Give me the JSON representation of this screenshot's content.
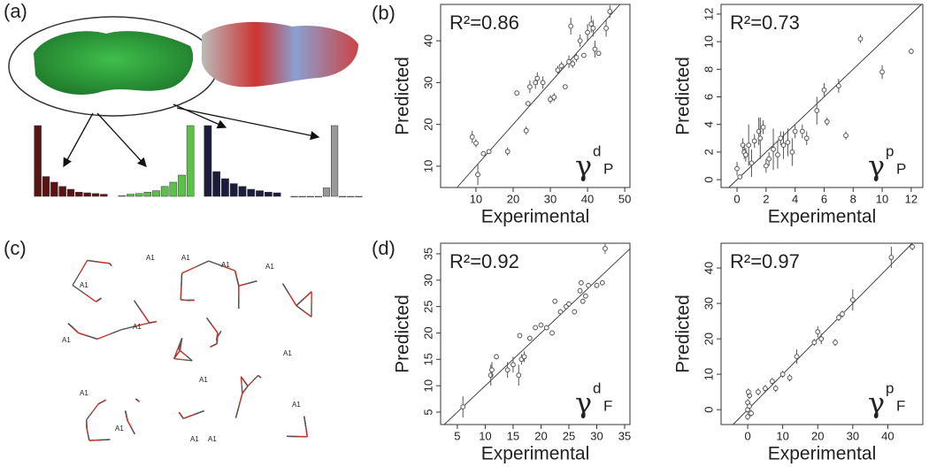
{
  "panel_labels": [
    "(a)",
    "(b)",
    "(c)",
    "(d)"
  ],
  "molecule_atom_labels": [
    "A1",
    "A1",
    "A1",
    "A1",
    "A1",
    "A1",
    "A1",
    "A1",
    "A1",
    "A1",
    "A1",
    "A1",
    "A1",
    "A1"
  ],
  "chart_data": [
    {
      "type": "bar",
      "values": [
        100,
        28,
        20,
        14,
        10,
        6,
        5,
        4,
        3
      ],
      "color": "#5a1414",
      "ylim": [
        0,
        100
      ]
    },
    {
      "type": "bar",
      "values": [
        1,
        3,
        4,
        6,
        8,
        14,
        20,
        30,
        100
      ],
      "color": "#5dc04a",
      "ylim": [
        0,
        100
      ]
    },
    {
      "type": "bar",
      "values": [
        100,
        35,
        25,
        18,
        14,
        10,
        8,
        6,
        5
      ],
      "color": "#1c1c3c",
      "ylim": [
        0,
        100
      ]
    },
    {
      "type": "bar",
      "values": [
        0,
        0,
        0,
        0,
        12,
        100,
        0,
        0,
        0
      ],
      "color": "#999999",
      "ylim": [
        0,
        100
      ]
    },
    {
      "type": "scatter",
      "x_label": "Experimental",
      "y_label": "Predicted",
      "annotation": "R²=0.86",
      "symbol": {
        "letter": "γ",
        "superscript": "d",
        "subscript": "P"
      },
      "color": "#555555",
      "x": [
        9,
        10,
        10.5,
        12,
        13.5,
        18.5,
        21,
        23.5,
        24,
        24.5,
        26,
        26.5,
        28,
        30,
        31,
        32,
        33,
        34,
        35,
        35.5,
        36,
        37,
        38,
        39,
        40,
        41,
        41.5,
        42,
        43,
        45,
        46
      ],
      "y": [
        17,
        15.5,
        8,
        13,
        13.5,
        13.5,
        27.5,
        18.5,
        25,
        29,
        30,
        31,
        30,
        26,
        26.5,
        33,
        34,
        29,
        35,
        43.5,
        34.5,
        36,
        40,
        36.5,
        42,
        44,
        43,
        38,
        37,
        43,
        47
      ],
      "errors": [
        1.5,
        1,
        2.5,
        0,
        0.5,
        1,
        0.5,
        1,
        0.5,
        1.5,
        1.5,
        1.5,
        1.5,
        1,
        1,
        1,
        1,
        0.5,
        1.5,
        2,
        1,
        1,
        1.5,
        0.5,
        2,
        2,
        2,
        2,
        0.5,
        2,
        1.5
      ],
      "xlim": [
        0.5,
        51.4
      ],
      "ylim": [
        4.9,
        48.7
      ],
      "xticks": [
        10,
        20,
        30,
        40,
        50
      ],
      "yticks": [
        10,
        20,
        30,
        40
      ]
    },
    {
      "type": "scatter",
      "x_label": "Experimental",
      "y_label": "Predicted",
      "annotation": "R²=0.73",
      "symbol": {
        "letter": "γ",
        "superscript": "p",
        "subscript": "P"
      },
      "color": "#555555",
      "x": [
        0,
        0.2,
        0.4,
        0.5,
        0.6,
        0.8,
        1,
        1.2,
        1.5,
        1.6,
        1.8,
        2,
        2.2,
        2.5,
        2.8,
        3,
        3.2,
        3.5,
        3.8,
        4,
        4.5,
        4.8,
        5.5,
        6,
        6.2,
        7,
        7.5,
        8.5,
        10,
        12
      ],
      "y": [
        0.8,
        0.2,
        2.5,
        2,
        1.8,
        2.5,
        1.2,
        2.8,
        3.5,
        3,
        3.8,
        1,
        1.5,
        2.2,
        1.8,
        3,
        2.5,
        2.7,
        2,
        3.5,
        3.5,
        3,
        5,
        6.5,
        4.2,
        6.8,
        3.2,
        10.2,
        7.8,
        9.3
      ],
      "errors": [
        0.5,
        0,
        0.5,
        0.5,
        0.5,
        1.5,
        1,
        0.5,
        1,
        1.5,
        0.5,
        0.5,
        0.5,
        1.5,
        1,
        0.5,
        1,
        1,
        1,
        0.5,
        0.5,
        0.5,
        1,
        0.5,
        0.3,
        0.5,
        0.3,
        0.3,
        0.5,
        0.2
      ],
      "xlim": [
        -1.1,
        12.8
      ],
      "ylim": [
        -0.57,
        12.7
      ],
      "xticks": [
        0,
        2,
        4,
        6,
        8,
        10,
        12
      ],
      "yticks": [
        0,
        2,
        4,
        6,
        8,
        10,
        12
      ]
    },
    {
      "type": "scatter",
      "x_label": "Experimental",
      "y_label": "Predicted",
      "annotation": "R²=0.92",
      "symbol": {
        "letter": "γ",
        "superscript": "d",
        "subscript": "F"
      },
      "color": "#555555",
      "x": [
        6,
        11,
        11.2,
        12,
        14,
        15,
        16,
        16.2,
        16.5,
        17,
        18,
        19,
        20,
        21,
        22,
        22.5,
        23.5,
        24.5,
        25,
        26,
        27,
        27.2,
        27.5,
        28,
        28.5,
        30,
        31,
        31.5
      ],
      "y": [
        6,
        12,
        13,
        15.5,
        13,
        14,
        12,
        19.5,
        15,
        15.5,
        19,
        21,
        21.5,
        21,
        20,
        26,
        24,
        25,
        25.5,
        24,
        28,
        29.5,
        26,
        27,
        29,
        29,
        29.5,
        36
      ],
      "errors": [
        2,
        2,
        1.5,
        0.5,
        1.5,
        1.5,
        2,
        0.5,
        1,
        1,
        0.5,
        0.5,
        0.5,
        0.5,
        0.5,
        0.5,
        0.5,
        0.5,
        0.5,
        0.5,
        0.5,
        0.5,
        0.5,
        0.5,
        0.5,
        0.5,
        0.5,
        1
      ],
      "xlim": [
        2,
        35.95
      ],
      "ylim": [
        2.65,
        37
      ],
      "xticks": [
        5,
        10,
        15,
        20,
        25,
        30,
        35
      ],
      "yticks": [
        5,
        10,
        15,
        20,
        25,
        30,
        35
      ]
    },
    {
      "type": "scatter",
      "x_label": "Experimental",
      "y_label": "Predicted",
      "annotation": "R²=0.97",
      "symbol": {
        "letter": "γ",
        "superscript": "p",
        "subscript": "F"
      },
      "color": "#555555",
      "x": [
        0,
        0,
        0.5,
        0,
        0.5,
        1,
        0.2,
        3,
        5,
        7,
        8,
        10,
        12,
        14,
        19,
        20,
        21,
        25,
        26,
        27,
        30,
        41,
        47
      ],
      "y": [
        0,
        2,
        4,
        -2,
        1,
        -1,
        5,
        5,
        6,
        8,
        6,
        10,
        9,
        15,
        19,
        22,
        20,
        19,
        26,
        27,
        31,
        43,
        46
      ],
      "errors": [
        1,
        1,
        1,
        1,
        1,
        1,
        1,
        1,
        1,
        1,
        1,
        1,
        1,
        2,
        1,
        1.5,
        1.5,
        1,
        1,
        1,
        3,
        3,
        1
      ],
      "xlim": [
        -7.6,
        50
      ],
      "ylim": [
        -4.2,
        47
      ],
      "xticks": [
        0,
        10,
        20,
        30,
        40
      ],
      "yticks": [
        0,
        10,
        20,
        30,
        40
      ]
    }
  ]
}
